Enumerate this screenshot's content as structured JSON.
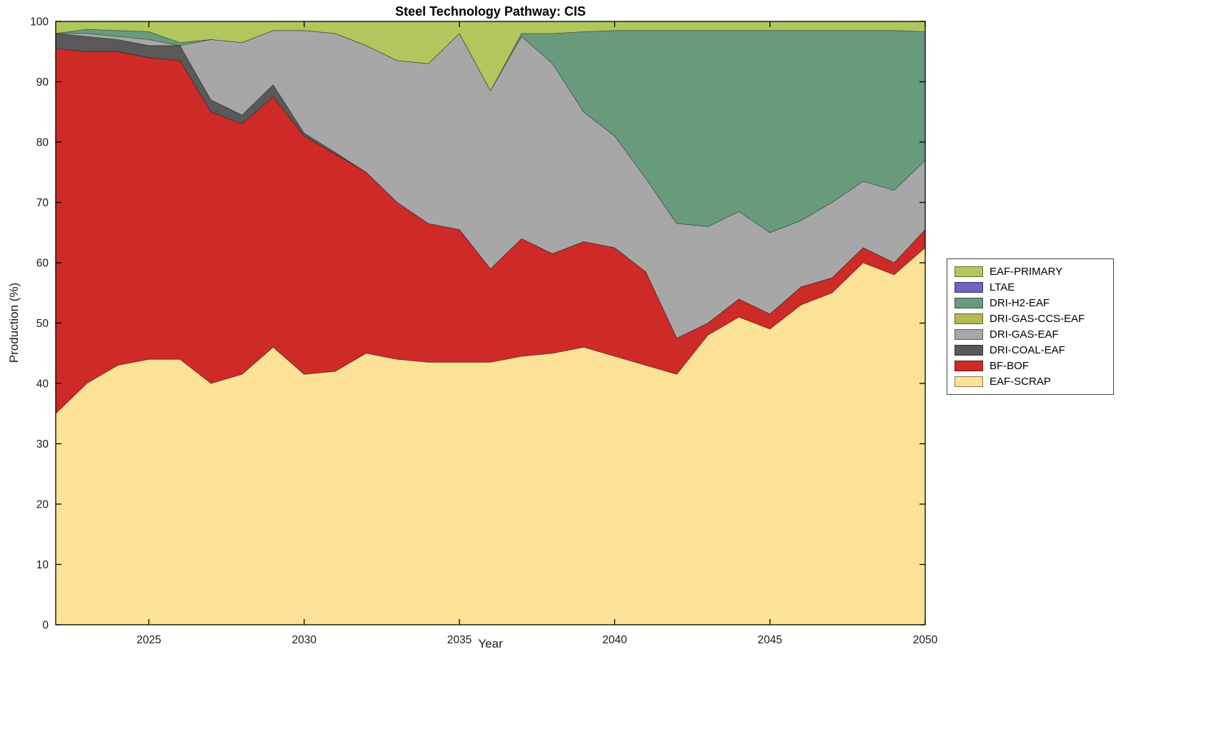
{
  "chart_data": {
    "type": "area",
    "stacked": true,
    "title": "Steel Technology Pathway: CIS",
    "xlabel": "Year",
    "ylabel": "Production (%)",
    "xlim": [
      2022,
      2050
    ],
    "ylim": [
      0,
      100
    ],
    "xticks": [
      2025,
      2030,
      2035,
      2040,
      2045,
      2050
    ],
    "yticks": [
      0,
      10,
      20,
      30,
      40,
      50,
      60,
      70,
      80,
      90,
      100
    ],
    "grid": false,
    "x": [
      2022,
      2023,
      2024,
      2025,
      2026,
      2027,
      2028,
      2029,
      2030,
      2031,
      2032,
      2033,
      2034,
      2035,
      2036,
      2037,
      2038,
      2039,
      2040,
      2041,
      2042,
      2043,
      2044,
      2045,
      2046,
      2047,
      2048,
      2049,
      2050
    ],
    "series": [
      {
        "name": "EAF-SCRAP",
        "color": "#FBE296",
        "values": [
          35,
          40,
          43,
          44,
          44,
          40,
          41.5,
          46,
          41.5,
          42,
          45,
          44,
          43.5,
          43.5,
          43.5,
          44.5,
          45,
          46,
          44.5,
          43,
          41.5,
          48,
          51,
          49,
          53,
          55,
          60,
          58,
          62.5
        ]
      },
      {
        "name": "BF-BOF",
        "color": "#CE2A27",
        "values": [
          60.5,
          55,
          52,
          50,
          49.5,
          45,
          41.5,
          41.5,
          39.5,
          36,
          30,
          26,
          23,
          22,
          15.5,
          19.5,
          16.5,
          17.5,
          18,
          15.5,
          6,
          2,
          3,
          2.5,
          3,
          2.5,
          2.5,
          2,
          3
        ]
      },
      {
        "name": "DRI-COAL-EAF",
        "color": "#595959",
        "values": [
          2.5,
          2.5,
          2,
          2,
          2.5,
          2,
          1.5,
          2,
          0.5,
          0.3,
          0,
          0,
          0,
          0,
          0,
          0,
          0,
          0,
          0,
          0,
          0,
          0,
          0,
          0,
          0,
          0,
          0,
          0,
          0
        ]
      },
      {
        "name": "DRI-GAS-EAF",
        "color": "#A7A7A7",
        "values": [
          0,
          0.5,
          0.5,
          1,
          0,
          10,
          12,
          9,
          17,
          19.7,
          21,
          23.5,
          26.5,
          32.5,
          29.5,
          33.5,
          31.5,
          21.5,
          18.5,
          15.5,
          19,
          16,
          14.5,
          13.5,
          11,
          12.5,
          11,
          12,
          11.5
        ]
      },
      {
        "name": "DRI-GAS-CCS-EAF",
        "color": "#B5B94F",
        "values": [
          0,
          0,
          0,
          0,
          0,
          0,
          0,
          0,
          0,
          0,
          0,
          0,
          0,
          0,
          0,
          0,
          0,
          0,
          0,
          0,
          0,
          0,
          0,
          0,
          0,
          0,
          0,
          0,
          0
        ]
      },
      {
        "name": "DRI-H2-EAF",
        "color": "#689B7C",
        "values": [
          0,
          0.7,
          1,
          1.3,
          0.5,
          0,
          0,
          0,
          0,
          0,
          0,
          0,
          0,
          0,
          0,
          0.5,
          5,
          13.3,
          17.5,
          24.5,
          32,
          32.5,
          30,
          33.5,
          31.5,
          28.5,
          25,
          26.5,
          21.3
        ]
      },
      {
        "name": "LTAE",
        "color": "#6F63C4",
        "values": [
          0,
          0,
          0,
          0,
          0,
          0,
          0,
          0,
          0,
          0,
          0,
          0,
          0,
          0,
          0,
          0,
          0,
          0,
          0,
          0,
          0,
          0,
          0,
          0,
          0,
          0,
          0,
          0,
          0
        ]
      },
      {
        "name": "EAF-PRIMARY",
        "color": "#B0C75E",
        "values": [
          2,
          1.3,
          1.5,
          1.7,
          3.5,
          3,
          3.5,
          1.5,
          1.5,
          2,
          4,
          6.5,
          7,
          2,
          11.5,
          2,
          2,
          1.7,
          1.5,
          1.5,
          1.5,
          1.5,
          1.5,
          1.5,
          1.5,
          1.5,
          1.5,
          1.5,
          1.7
        ]
      }
    ],
    "legend": {
      "position": "right",
      "order_top_to_bottom": [
        "EAF-PRIMARY",
        "LTAE",
        "DRI-H2-EAF",
        "DRI-GAS-CCS-EAF",
        "DRI-GAS-EAF",
        "DRI-COAL-EAF",
        "BF-BOF",
        "EAF-SCRAP"
      ]
    }
  }
}
